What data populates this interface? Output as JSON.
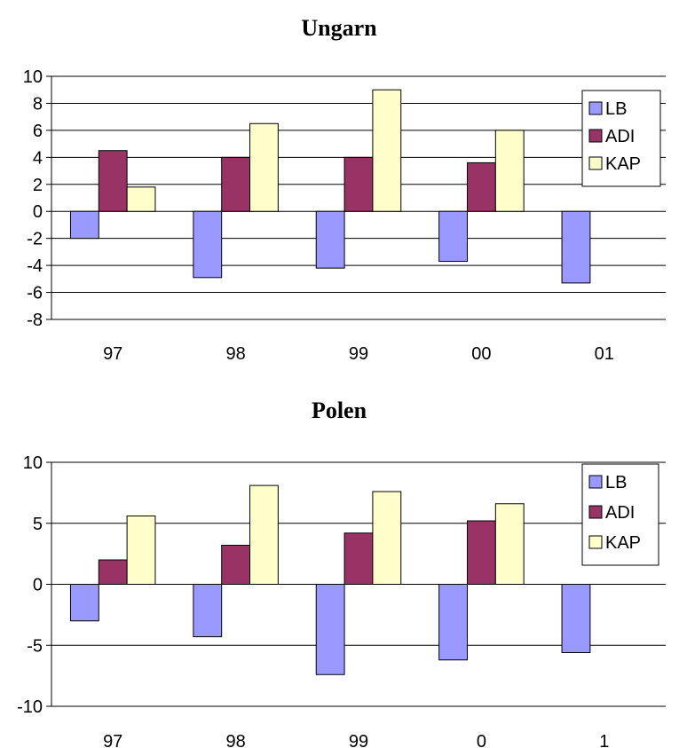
{
  "chart_data": [
    {
      "type": "bar",
      "title": "Ungarn",
      "categories": [
        "97",
        "98",
        "99",
        "00",
        "01"
      ],
      "ylim": [
        -8,
        10
      ],
      "yticks": [
        10,
        8,
        6,
        4,
        2,
        0,
        -2,
        -4,
        -6,
        -8
      ],
      "yticklabels": [
        "10",
        "8",
        "6",
        "4",
        "2",
        "0",
        "-2",
        "-4",
        "-6",
        "-8"
      ],
      "grid": true,
      "legend": "top-right",
      "series": [
        {
          "name": "LB",
          "color": "#9999ff",
          "values": [
            -2.0,
            -4.9,
            -4.2,
            -3.7,
            -5.3
          ]
        },
        {
          "name": "ADI",
          "color": "#993366",
          "values": [
            4.5,
            4.0,
            4.0,
            3.6,
            null
          ]
        },
        {
          "name": "KAP",
          "color": "#ffffcc",
          "values": [
            1.8,
            6.5,
            9.0,
            6.0,
            null
          ]
        }
      ]
    },
    {
      "type": "bar",
      "title": "Polen",
      "categories": [
        "97",
        "98",
        "99",
        "0",
        "1"
      ],
      "ylim": [
        -10,
        10
      ],
      "yticks": [
        10,
        5,
        0,
        -5,
        -10
      ],
      "yticklabels": [
        "10",
        "5",
        "0",
        "-5",
        "-10"
      ],
      "grid": true,
      "legend": "top-right",
      "series": [
        {
          "name": "LB",
          "color": "#9999ff",
          "values": [
            -3.0,
            -4.3,
            -7.4,
            -6.2,
            -5.6
          ]
        },
        {
          "name": "ADI",
          "color": "#993366",
          "values": [
            2.0,
            3.2,
            4.2,
            5.2,
            null
          ]
        },
        {
          "name": "KAP",
          "color": "#ffffcc",
          "values": [
            5.6,
            8.1,
            7.6,
            6.6,
            null
          ]
        }
      ]
    }
  ]
}
